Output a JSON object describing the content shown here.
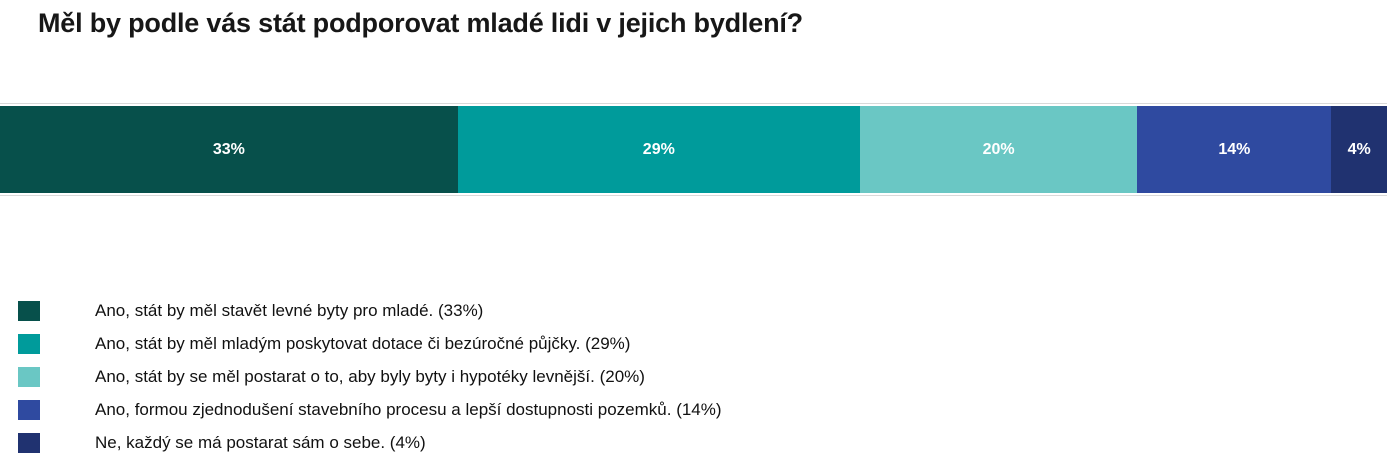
{
  "chart_data": {
    "type": "bar",
    "variant": "horizontal-stacked-100",
    "title": "Měl by podle vás stát podporovat mladé lidi v jejich bydlení?",
    "axis": "none",
    "grid": false,
    "legend_position": "bottom-left",
    "total": 100,
    "series": [
      {
        "name": "Ano, stát by měl stavět levné byty pro mladé.",
        "value": 33,
        "data_label": "33%",
        "color": "#07504b",
        "legend_label": "Ano, stát by měl stavět levné byty pro mladé. (33%)"
      },
      {
        "name": "Ano, stát by měl mladým poskytovat dotace či bezúročné půjčky.",
        "value": 29,
        "data_label": "29%",
        "color": "#009b9b",
        "legend_label": "Ano, stát by měl mladým poskytovat dotace či bezúročné půjčky. (29%)"
      },
      {
        "name": "Ano, stát by se měl postarat o to, aby byly byty i hypotéky levnější.",
        "value": 20,
        "data_label": "20%",
        "color": "#6ac7c4",
        "legend_label": "Ano, stát by se měl postarat o to, aby byly byty i hypotéky levnější. (20%)"
      },
      {
        "name": "Ano, formou zjednodušení stavebního procesu a lepší dostupnosti pozemků.",
        "value": 14,
        "data_label": "14%",
        "color": "#2f4aa0",
        "legend_label": "Ano, formou zjednodušení stavebního procesu a lepší dostupnosti pozemků. (14%)"
      },
      {
        "name": "Ne, každý se má postarat sám o sebe.",
        "value": 4,
        "data_label": "4%",
        "color": "#203270",
        "legend_label": "Ne, každý se má postarat sám o sebe. (4%)"
      }
    ],
    "colors": {
      "background": "#ffffff",
      "title_text": "#171717",
      "bar_label_text": "#ffffff",
      "legend_text": "#111111",
      "plot_border": "#d9d9d9"
    }
  }
}
